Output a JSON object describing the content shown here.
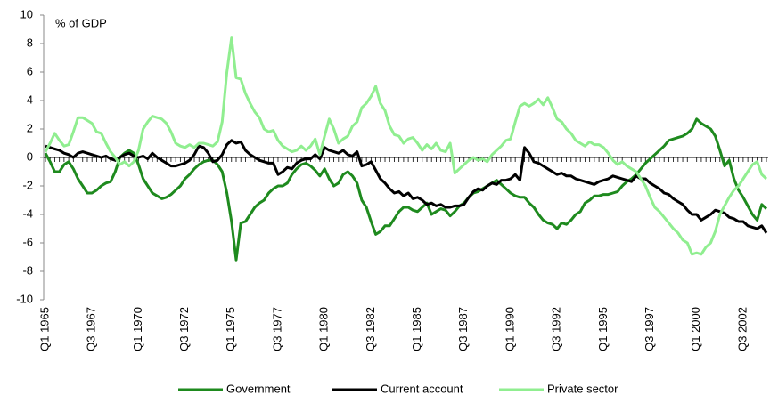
{
  "chart_data": {
    "type": "line",
    "annotation": "% of GDP",
    "categories": [
      "Q1 1965",
      null,
      null,
      null,
      null,
      null,
      null,
      null,
      null,
      null,
      "Q3 1967",
      null,
      null,
      null,
      null,
      null,
      null,
      null,
      null,
      null,
      "Q1 1970",
      null,
      null,
      null,
      null,
      null,
      null,
      null,
      null,
      null,
      "Q3 1972",
      null,
      null,
      null,
      null,
      null,
      null,
      null,
      null,
      null,
      "Q1 1975",
      null,
      null,
      null,
      null,
      null,
      null,
      null,
      null,
      null,
      "Q3 1977",
      null,
      null,
      null,
      null,
      null,
      null,
      null,
      null,
      null,
      "Q1 1980",
      null,
      null,
      null,
      null,
      null,
      null,
      null,
      null,
      null,
      "Q3 1982",
      null,
      null,
      null,
      null,
      null,
      null,
      null,
      null,
      null,
      "Q1 1985",
      null,
      null,
      null,
      null,
      null,
      null,
      null,
      null,
      null,
      "Q3 1987",
      null,
      null,
      null,
      null,
      null,
      null,
      null,
      null,
      null,
      "Q1 1990",
      null,
      null,
      null,
      null,
      null,
      null,
      null,
      null,
      null,
      "Q3 1992",
      null,
      null,
      null,
      null,
      null,
      null,
      null,
      null,
      null,
      "Q1 1995",
      null,
      null,
      null,
      null,
      null,
      null,
      null,
      null,
      null,
      "Q3 1997",
      null,
      null,
      null,
      null,
      null,
      null,
      null,
      null,
      null,
      "Q1 2000",
      null,
      null,
      null,
      null,
      null,
      null,
      null,
      null,
      null,
      "Q3 2002",
      null,
      null,
      null,
      null,
      null
    ],
    "series": [
      {
        "name": "Government",
        "color": "#1e8a1e",
        "values": [
          0.3,
          -0.3,
          -1.0,
          -1.0,
          -0.5,
          -0.3,
          -0.8,
          -1.5,
          -2.0,
          -2.5,
          -2.5,
          -2.3,
          -2.0,
          -1.8,
          -1.7,
          -1.0,
          0.0,
          0.3,
          0.5,
          0.3,
          -0.5,
          -1.5,
          -2.0,
          -2.5,
          -2.7,
          -2.9,
          -2.8,
          -2.6,
          -2.3,
          -2.0,
          -1.5,
          -1.2,
          -0.8,
          -0.5,
          -0.3,
          -0.2,
          -0.2,
          -0.5,
          -1.0,
          -2.5,
          -4.5,
          -7.2,
          -4.6,
          -4.5,
          -4.0,
          -3.5,
          -3.2,
          -3.0,
          -2.5,
          -2.2,
          -2.0,
          -2.0,
          -1.8,
          -1.2,
          -0.8,
          -0.5,
          -0.4,
          -0.6,
          -0.9,
          -1.3,
          -0.8,
          -1.5,
          -2.0,
          -1.8,
          -1.2,
          -1.0,
          -1.3,
          -1.8,
          -3.0,
          -3.5,
          -4.5,
          -5.4,
          -5.2,
          -4.8,
          -4.8,
          -4.3,
          -3.8,
          -3.5,
          -3.5,
          -3.7,
          -3.8,
          -3.5,
          -3.2,
          -4.0,
          -3.8,
          -3.6,
          -3.7,
          -4.1,
          -3.8,
          -3.4,
          -3.2,
          -2.8,
          -2.5,
          -2.4,
          -2.2,
          -2.0,
          -1.8,
          -1.6,
          -1.9,
          -2.2,
          -2.5,
          -2.7,
          -2.8,
          -2.8,
          -3.2,
          -3.5,
          -4.0,
          -4.4,
          -4.6,
          -4.7,
          -5.0,
          -4.6,
          -4.7,
          -4.4,
          -4.0,
          -3.8,
          -3.2,
          -3.0,
          -2.7,
          -2.7,
          -2.6,
          -2.6,
          -2.5,
          -2.4,
          -2.0,
          -1.7,
          -1.5,
          -1.2,
          -0.8,
          -0.4,
          -0.1,
          0.2,
          0.5,
          0.8,
          1.2,
          1.3,
          1.4,
          1.5,
          1.7,
          2.0,
          2.7,
          2.4,
          2.2,
          2.0,
          1.5,
          0.5,
          -0.6,
          -0.2,
          -1.5,
          -2.3,
          -2.8,
          -3.4,
          -4.0,
          -4.4,
          -3.3,
          -3.6
        ]
      },
      {
        "name": "Current account",
        "color": "#000000",
        "values": [
          0.8,
          0.7,
          0.6,
          0.5,
          0.3,
          0.2,
          0.0,
          0.3,
          0.4,
          0.3,
          0.2,
          0.1,
          0.0,
          0.1,
          -0.1,
          -0.2,
          0.0,
          0.2,
          0.3,
          0.1,
          0.0,
          0.1,
          -0.1,
          0.3,
          0.0,
          -0.2,
          -0.4,
          -0.6,
          -0.6,
          -0.5,
          -0.4,
          -0.2,
          0.2,
          0.8,
          0.7,
          0.3,
          -0.3,
          -0.2,
          0.2,
          0.9,
          1.2,
          1.0,
          1.1,
          0.5,
          0.2,
          0.0,
          -0.2,
          -0.3,
          -0.4,
          -0.4,
          -1.2,
          -1.0,
          -0.7,
          -0.8,
          -0.4,
          -0.2,
          -0.1,
          -0.1,
          0.2,
          -0.1,
          0.7,
          0.5,
          0.4,
          0.3,
          0.5,
          0.2,
          0.1,
          0.4,
          -0.6,
          -0.5,
          -0.3,
          -0.9,
          -1.5,
          -1.8,
          -2.2,
          -2.5,
          -2.4,
          -2.7,
          -2.5,
          -2.9,
          -2.8,
          -3.0,
          -3.3,
          -3.2,
          -3.4,
          -3.3,
          -3.5,
          -3.5,
          -3.4,
          -3.4,
          -3.3,
          -2.8,
          -2.4,
          -2.2,
          -2.3,
          -2.0,
          -1.8,
          -1.9,
          -1.6,
          -1.6,
          -1.5,
          -1.2,
          -1.6,
          0.7,
          0.3,
          -0.3,
          -0.4,
          -0.6,
          -0.8,
          -1.0,
          -1.2,
          -1.1,
          -1.3,
          -1.3,
          -1.5,
          -1.6,
          -1.7,
          -1.8,
          -1.9,
          -1.7,
          -1.6,
          -1.5,
          -1.3,
          -1.4,
          -1.5,
          -1.6,
          -1.7,
          -1.3,
          -1.5,
          -1.5,
          -1.8,
          -2.0,
          -2.2,
          -2.5,
          -2.6,
          -2.9,
          -3.1,
          -3.3,
          -3.7,
          -4.0,
          -4.0,
          -4.4,
          -4.2,
          -4.0,
          -3.7,
          -3.8,
          -3.9,
          -4.2,
          -4.3,
          -4.5,
          -4.5,
          -4.8,
          -4.9,
          -5.0,
          -4.8,
          -5.3
        ]
      },
      {
        "name": "Private sector",
        "color": "#90ee90",
        "values": [
          0.4,
          1.0,
          1.7,
          1.2,
          0.8,
          0.9,
          1.8,
          2.8,
          2.8,
          2.6,
          2.4,
          1.8,
          1.7,
          1.0,
          0.4,
          0.0,
          -0.5,
          -0.3,
          -0.6,
          -0.3,
          0.5,
          2.0,
          2.5,
          2.9,
          2.8,
          2.7,
          2.4,
          1.8,
          1.0,
          0.8,
          0.7,
          0.9,
          0.7,
          1.0,
          1.0,
          0.9,
          0.8,
          1.1,
          2.5,
          6.0,
          8.4,
          5.6,
          5.5,
          4.5,
          3.8,
          3.2,
          2.8,
          2.0,
          1.8,
          1.9,
          1.2,
          0.8,
          0.6,
          0.4,
          0.5,
          0.8,
          0.5,
          0.8,
          1.3,
          0.2,
          1.5,
          2.7,
          2.0,
          1.0,
          1.3,
          1.5,
          2.2,
          2.5,
          3.5,
          3.8,
          4.3,
          5.0,
          3.8,
          3.3,
          2.2,
          1.6,
          1.5,
          1.0,
          1.3,
          1.4,
          1.0,
          0.5,
          0.9,
          0.6,
          1.0,
          0.5,
          0.4,
          1.0,
          -1.1,
          -0.8,
          -0.5,
          -0.2,
          0.0,
          -0.2,
          -0.1,
          -0.3,
          0.2,
          0.5,
          0.8,
          1.2,
          1.3,
          2.5,
          3.6,
          3.8,
          3.6,
          3.8,
          4.1,
          3.7,
          4.2,
          3.5,
          2.7,
          2.5,
          2.0,
          1.7,
          1.2,
          1.0,
          0.8,
          1.1,
          0.9,
          0.9,
          0.7,
          0.3,
          -0.2,
          -0.5,
          -0.3,
          -0.6,
          -0.8,
          -1.0,
          -1.5,
          -2.0,
          -2.8,
          -3.5,
          -3.8,
          -4.2,
          -4.6,
          -5.0,
          -5.3,
          -5.8,
          -6.0,
          -6.8,
          -6.7,
          -6.8,
          -6.3,
          -6.0,
          -5.2,
          -4.0,
          -3.4,
          -2.8,
          -2.3,
          -2.0,
          -1.5,
          -1.0,
          -0.5,
          -0.3,
          -1.2,
          -1.5
        ]
      }
    ],
    "ylim": [
      -10,
      10
    ],
    "yticks": [
      -10,
      -8,
      -6,
      -4,
      -2,
      0,
      2,
      4,
      6,
      8,
      10
    ],
    "legend": "bottom"
  }
}
